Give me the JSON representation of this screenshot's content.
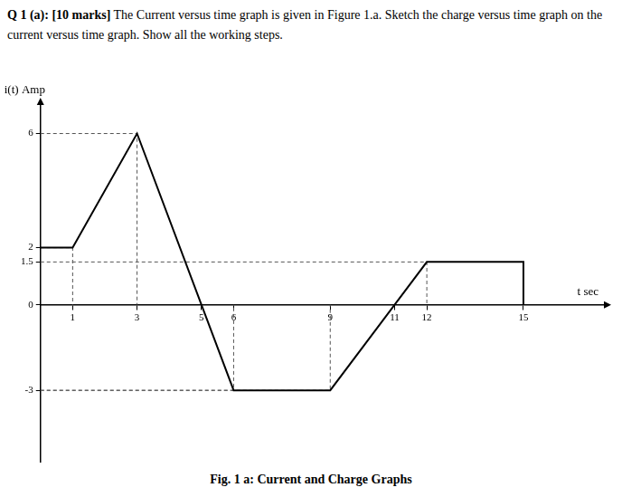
{
  "chart_data": {
    "type": "line",
    "title": "Q 1 (a): [10 marks] The Current versus time graph is given in Figure 1.a. Sketch the charge versus time graph on the current versus time graph. Show all the working steps.",
    "caption": "Fig. 1 a: Current and Charge Graphs",
    "x_label": "t sec",
    "y_label": "i(t) Amp",
    "x": [
      0,
      1,
      3,
      5,
      6,
      9,
      11,
      12,
      15,
      15
    ],
    "values": [
      2,
      2,
      6,
      0,
      -3,
      -3,
      0,
      1.5,
      1.5,
      0
    ],
    "color": "#000000",
    "xlim": [
      0,
      17.5
    ],
    "xticks": [
      1,
      3,
      5,
      6,
      9,
      11,
      12,
      15
    ],
    "ylim": [
      -5.5,
      7
    ],
    "yticks": [
      -3,
      0,
      1.5,
      2,
      6
    ],
    "guides": {
      "x": [
        1,
        3,
        6,
        9,
        12
      ],
      "y": [
        2,
        6,
        -3,
        -3,
        1.5
      ]
    },
    "grid": false
  }
}
